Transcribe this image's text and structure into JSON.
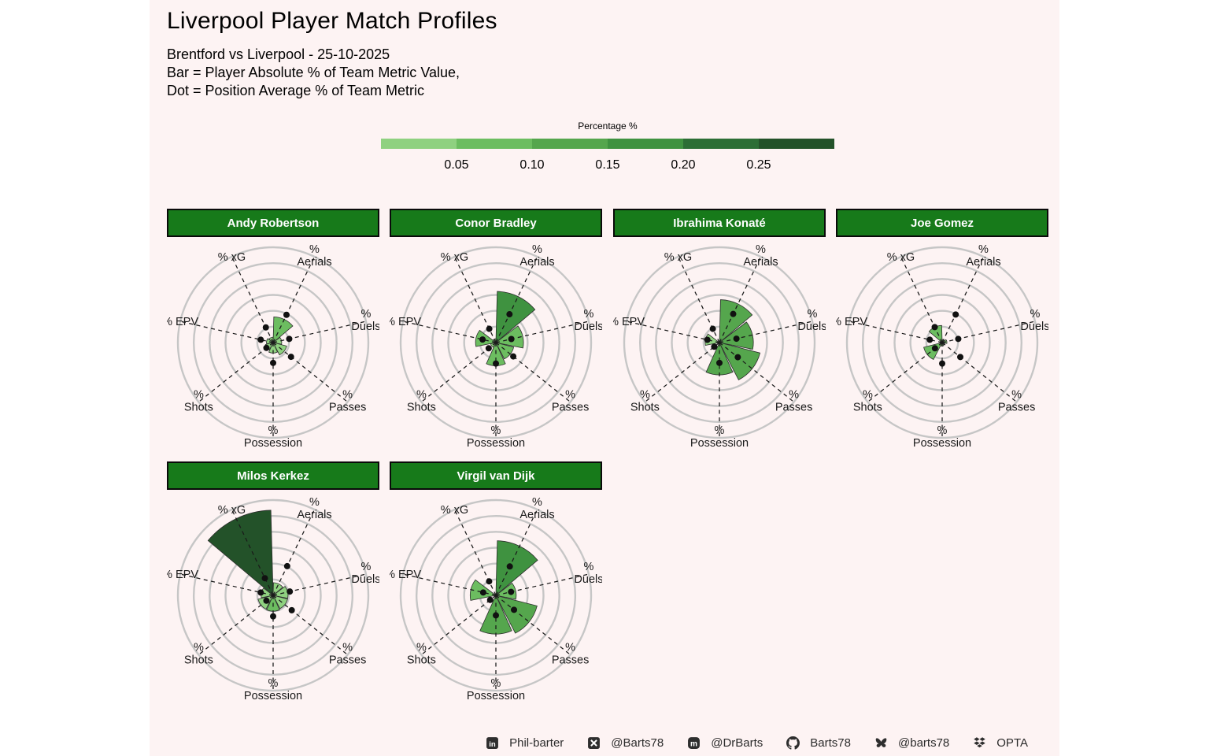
{
  "title": "Liverpool Player Match Profiles",
  "subtitle_lines": [
    "Brentford vs Liverpool - 25-10-2025",
    "Bar = Player Absolute % of Team Metric Value,",
    "Dot = Position Average % of Team Metric"
  ],
  "legend": {
    "title": "Percentage %",
    "ticks": [
      "0.05",
      "0.10",
      "0.15",
      "0.20",
      "0.25"
    ],
    "tick_values": [
      0.05,
      0.1,
      0.15,
      0.2,
      0.25
    ],
    "domain": [
      0,
      0.3
    ],
    "bin_colors": [
      "#8fd180",
      "#6cbd60",
      "#55a64d",
      "#3f9240",
      "#2c6e35",
      "#235229"
    ],
    "bin_thresholds": [
      0.05,
      0.1,
      0.15,
      0.2,
      0.25
    ]
  },
  "colors": {
    "canvas": "#fdf3f3",
    "header_bg": "#177a1a",
    "header_text": "#ffffff",
    "ring": "#c6c6c6",
    "spoke": "#1a1a1a",
    "dot": "#111111",
    "bar_stroke": "#2d2d2d",
    "footer_text": "#2b2b2b",
    "icon": "#2e2e2e"
  },
  "chart_data": {
    "type": "bar",
    "subtype": "polar-rose-small-multiples",
    "categories": [
      "% Aerials",
      "% Duels",
      "% Passes",
      "% Possession",
      "% Shots",
      "% EPV",
      "% xG"
    ],
    "category_label_lines": [
      [
        "%",
        "Aerials"
      ],
      [
        "%",
        "Duels"
      ],
      [
        "%",
        "Passes"
      ],
      [
        "%",
        "Possession"
      ],
      [
        "%",
        "Shots"
      ],
      [
        "% EPV"
      ],
      [
        "% xG"
      ]
    ],
    "angles_deg": [
      25.714,
      77.143,
      128.571,
      180,
      231.429,
      282.857,
      334.286
    ],
    "r_axis": {
      "min": 0,
      "max": 0.3,
      "ring_step": 0.05,
      "rings": [
        0.05,
        0.1,
        0.15,
        0.2,
        0.25,
        0.3
      ],
      "grid": true
    },
    "bar_meaning": "Player Absolute % of Team Metric Value",
    "dot_meaning": "Position Average % of Team Metric",
    "players": [
      {
        "name": "Andy Robertson",
        "bars": [
          0.081,
          0.027,
          0.044,
          0.033,
          0.025,
          0.021,
          0.017
        ],
        "dots": [
          0.097,
          0.052,
          0.072,
          0.064,
          0.027,
          0.04,
          0.053
        ]
      },
      {
        "name": "Conor Bradley",
        "bars": [
          0.161,
          0.087,
          0.058,
          0.073,
          0.017,
          0.064,
          0.012
        ],
        "dots": [
          0.099,
          0.05,
          0.07,
          0.066,
          0.029,
          0.043,
          0.048
        ]
      },
      {
        "name": "Ibrahima Konaté",
        "bars": [
          0.135,
          0.107,
          0.132,
          0.102,
          0.006,
          0.045,
          0.004
        ],
        "dots": [
          0.1,
          0.055,
          0.074,
          0.064,
          0.021,
          0.039,
          0.048
        ]
      },
      {
        "name": "Joe Gomez",
        "bars": [
          0.01,
          0.015,
          0.009,
          0.011,
          0.06,
          0.007,
          0.054
        ],
        "dots": [
          0.098,
          0.052,
          0.073,
          0.066,
          0.029,
          0.04,
          0.054
        ]
      },
      {
        "name": "Milos Kerkez",
        "bars": [
          0.04,
          0.047,
          0.047,
          0.05,
          0.049,
          0.038,
          0.268
        ],
        "dots": [
          0.102,
          0.054,
          0.075,
          0.066,
          0.027,
          0.04,
          0.06
        ]
      },
      {
        "name": "Virgil van Dijk",
        "bars": [
          0.172,
          0.064,
          0.134,
          0.122,
          0.004,
          0.081,
          0.004
        ],
        "dots": [
          0.101,
          0.049,
          0.073,
          0.063,
          0.023,
          0.041,
          0.049
        ]
      }
    ]
  },
  "footer": {
    "items": [
      {
        "icon": "linkedin-icon",
        "label": "Phil-barter"
      },
      {
        "icon": "x-icon",
        "label": "@Barts78"
      },
      {
        "icon": "mastodon-icon",
        "label": "@DrBarts"
      },
      {
        "icon": "github-icon",
        "label": "Barts78"
      },
      {
        "icon": "bluesky-icon",
        "label": "@barts78"
      },
      {
        "icon": "dropbox-icon",
        "label": "OPTA"
      }
    ]
  }
}
